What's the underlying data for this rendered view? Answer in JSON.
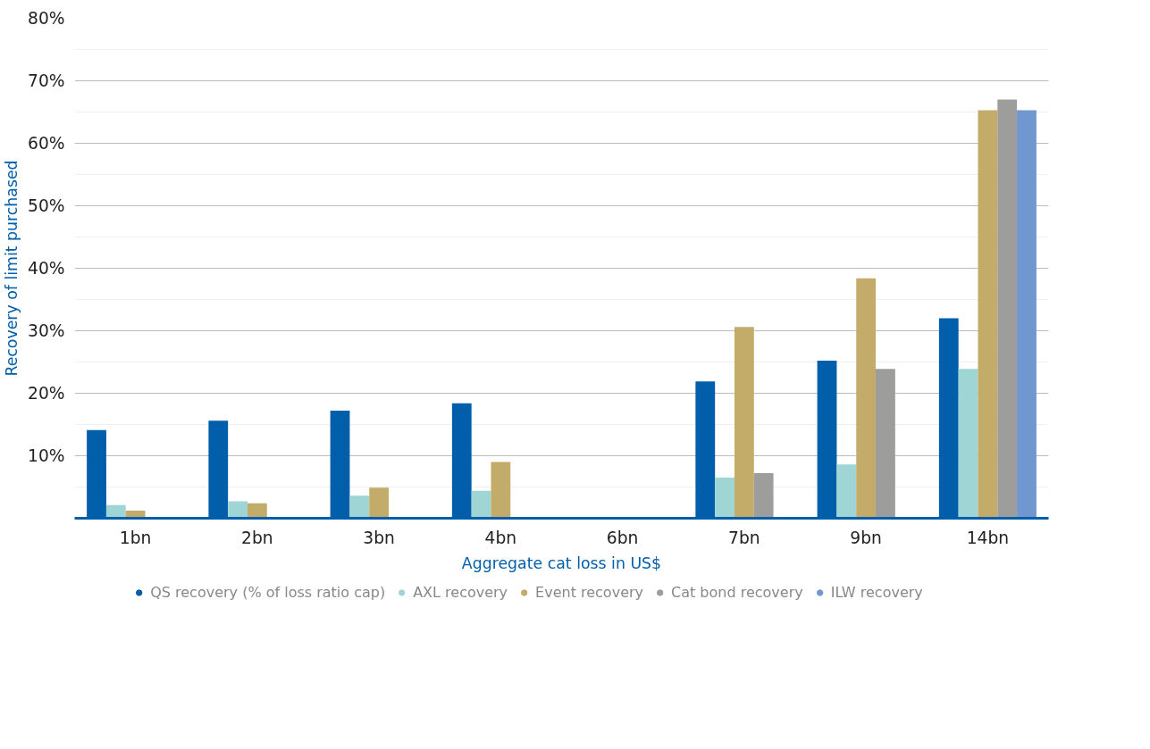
{
  "chart_data": {
    "type": "bar",
    "xlabel": "Aggregate cat loss in US$",
    "ylabel": "Recovery of limit purchased",
    "categories": [
      "1bn",
      "2bn",
      "3bn",
      "4bn",
      "6bn",
      "7bn",
      "9bn",
      "14bn"
    ],
    "series": [
      {
        "name": "QS recovery (% of loss ratio cap)",
        "color": "#005eaa",
        "values": [
          14.1,
          15.6,
          17.2,
          18.4,
          null,
          21.9,
          25.2,
          32.0
        ]
      },
      {
        "name": "AXL recovery",
        "color": "#a0d5d6",
        "values": [
          2.1,
          2.7,
          3.6,
          4.4,
          null,
          6.5,
          8.6,
          23.9
        ]
      },
      {
        "name": "Event recovery",
        "color": "#c3ac6a",
        "values": [
          1.2,
          2.4,
          4.9,
          9.0,
          null,
          30.6,
          38.4,
          65.3
        ]
      },
      {
        "name": "Cat bond recovery",
        "color": "#9d9d9c",
        "values": [
          null,
          null,
          null,
          null,
          null,
          7.2,
          23.9,
          67.0
        ]
      },
      {
        "name": "ILW recovery",
        "color": "#7097cf",
        "values": [
          null,
          null,
          null,
          null,
          null,
          null,
          null,
          65.3
        ]
      }
    ],
    "ylim": [
      0,
      80
    ],
    "yticks": [
      {
        "value": 5,
        "label": null
      },
      {
        "value": 10,
        "label": "10%"
      },
      {
        "value": 15,
        "label": null
      },
      {
        "value": 20,
        "label": "20%"
      },
      {
        "value": 25,
        "label": null
      },
      {
        "value": 30,
        "label": "30%"
      },
      {
        "value": 35,
        "label": null
      },
      {
        "value": 40,
        "label": "40%"
      },
      {
        "value": 45,
        "label": null
      },
      {
        "value": 50,
        "label": "50%"
      },
      {
        "value": 55,
        "label": null
      },
      {
        "value": 60,
        "label": "60%"
      },
      {
        "value": 65,
        "label": null
      },
      {
        "value": 70,
        "label": "70%"
      },
      {
        "value": 75,
        "label": null
      },
      {
        "value": 80,
        "label": "80%"
      }
    ],
    "grid": "y",
    "legend": "bottom"
  }
}
